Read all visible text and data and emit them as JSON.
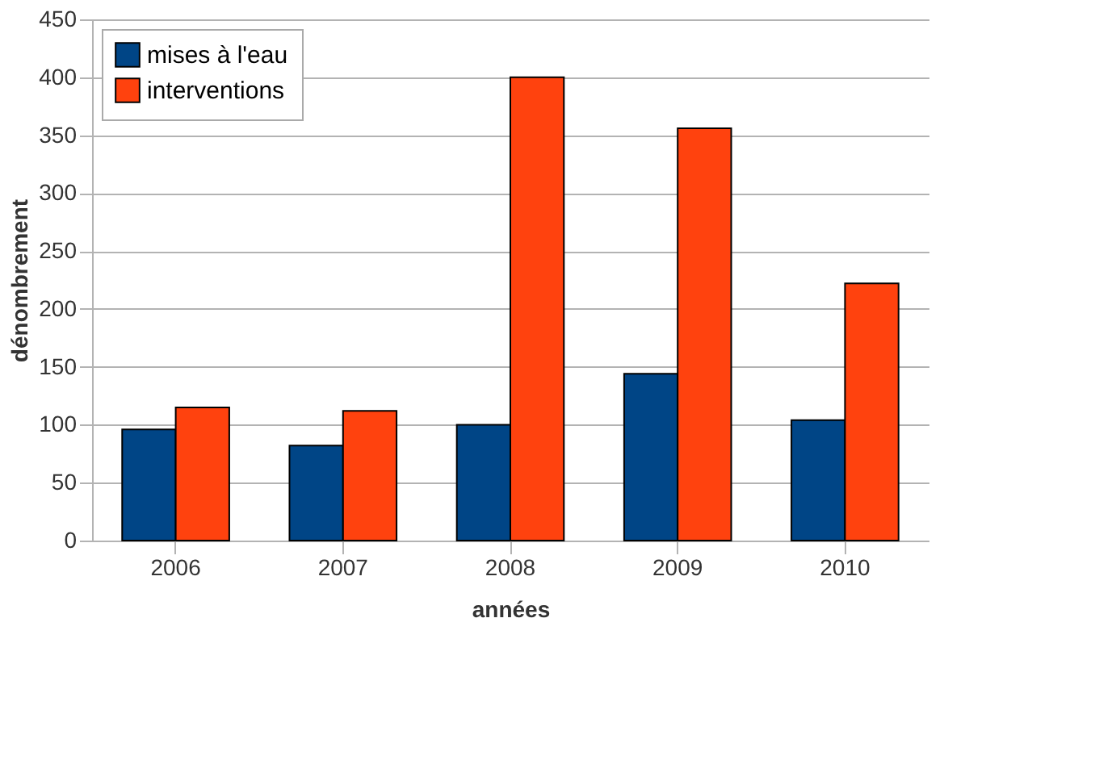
{
  "chart_data": {
    "type": "bar",
    "xlabel": "années",
    "ylabel": "dénombrement",
    "categories": [
      "2006",
      "2007",
      "2008",
      "2009",
      "2010"
    ],
    "series": [
      {
        "name": "mises à l'eau",
        "color": "#004586",
        "values": [
          96,
          82,
          100,
          144,
          104
        ]
      },
      {
        "name": "interventions",
        "color": "#ff420e",
        "values": [
          115,
          112,
          400,
          356,
          222
        ]
      }
    ],
    "ylim": [
      0,
      450
    ],
    "yticks": [
      0,
      50,
      100,
      150,
      200,
      250,
      300,
      350,
      400,
      450
    ],
    "grid": "y",
    "legend": "top left"
  }
}
